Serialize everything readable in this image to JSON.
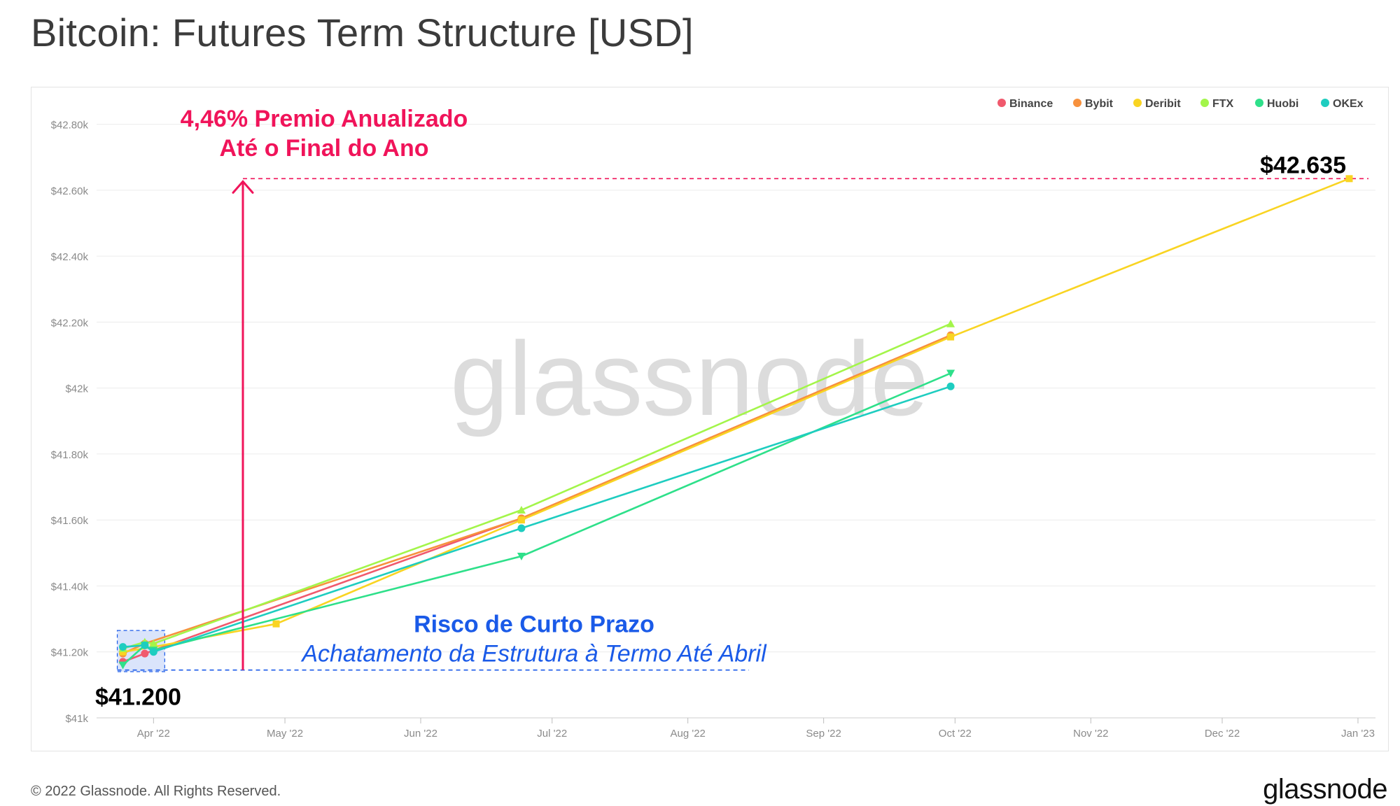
{
  "title": "Bitcoin: Futures Term Structure [USD]",
  "footer": "© 2022 Glassnode. All Rights Reserved.",
  "brand": "glassnode",
  "watermark": "glassnode",
  "chart_data": {
    "type": "line",
    "title": "Bitcoin: Futures Term Structure [USD]",
    "ylim": [
      41000,
      42850
    ],
    "xlim": [
      "2022-03-19",
      "2023-01-05"
    ],
    "y_ticks": [
      {
        "value": 41000,
        "label": "$41k"
      },
      {
        "value": 41200,
        "label": "$41.20k"
      },
      {
        "value": 41400,
        "label": "$41.40k"
      },
      {
        "value": 41600,
        "label": "$41.60k"
      },
      {
        "value": 41800,
        "label": "$41.80k"
      },
      {
        "value": 42000,
        "label": "$42k"
      },
      {
        "value": 42200,
        "label": "$42.20k"
      },
      {
        "value": 42400,
        "label": "$42.40k"
      },
      {
        "value": 42600,
        "label": "$42.60k"
      },
      {
        "value": 42800,
        "label": "$42.80k"
      }
    ],
    "x_ticks": [
      {
        "date": "2022-04-01",
        "label": "Apr '22"
      },
      {
        "date": "2022-05-01",
        "label": "May '22"
      },
      {
        "date": "2022-06-01",
        "label": "Jun '22"
      },
      {
        "date": "2022-07-01",
        "label": "Jul '22"
      },
      {
        "date": "2022-08-01",
        "label": "Aug '22"
      },
      {
        "date": "2022-09-01",
        "label": "Sep '22"
      },
      {
        "date": "2022-10-01",
        "label": "Oct '22"
      },
      {
        "date": "2022-11-01",
        "label": "Nov '22"
      },
      {
        "date": "2022-12-01",
        "label": "Dec '22"
      },
      {
        "date": "2023-01-01",
        "label": "Jan '23"
      }
    ],
    "grid": true,
    "legend_position": "top-right",
    "series": [
      {
        "name": "Binance",
        "color": "#f0596d",
        "marker": "circle",
        "points": [
          {
            "x": "2022-03-25",
            "y": 41170
          },
          {
            "x": "2022-03-30",
            "y": 41195
          },
          {
            "x": "2022-06-24",
            "y": 41605
          },
          {
            "x": "2022-09-30",
            "y": 42160
          }
        ]
      },
      {
        "name": "Bybit",
        "color": "#f7913d",
        "marker": "circle",
        "points": [
          {
            "x": "2022-03-25",
            "y": 41195
          },
          {
            "x": "2022-03-30",
            "y": 41225
          },
          {
            "x": "2022-06-24",
            "y": 41605
          },
          {
            "x": "2022-09-30",
            "y": 42160
          }
        ]
      },
      {
        "name": "Deribit",
        "color": "#f9d422",
        "marker": "square",
        "points": [
          {
            "x": "2022-03-25",
            "y": 41200
          },
          {
            "x": "2022-04-01",
            "y": 41215
          },
          {
            "x": "2022-04-29",
            "y": 41285
          },
          {
            "x": "2022-06-24",
            "y": 41600
          },
          {
            "x": "2022-09-30",
            "y": 42155
          },
          {
            "x": "2022-12-30",
            "y": 42635
          }
        ]
      },
      {
        "name": "FTX",
        "color": "#a3f54a",
        "marker": "triangle-up",
        "points": [
          {
            "x": "2022-03-25",
            "y": 41210
          },
          {
            "x": "2022-03-30",
            "y": 41230
          },
          {
            "x": "2022-04-01",
            "y": 41225
          },
          {
            "x": "2022-06-24",
            "y": 41630
          },
          {
            "x": "2022-09-30",
            "y": 42195
          }
        ]
      },
      {
        "name": "Huobi",
        "color": "#2ee08a",
        "marker": "triangle-down",
        "points": [
          {
            "x": "2022-03-25",
            "y": 41160
          },
          {
            "x": "2022-03-30",
            "y": 41220
          },
          {
            "x": "2022-04-01",
            "y": 41205
          },
          {
            "x": "2022-06-24",
            "y": 41490
          },
          {
            "x": "2022-09-30",
            "y": 42045
          }
        ]
      },
      {
        "name": "OKEx",
        "color": "#1ecdc0",
        "marker": "circle",
        "points": [
          {
            "x": "2022-03-25",
            "y": 41215
          },
          {
            "x": "2022-03-30",
            "y": 41220
          },
          {
            "x": "2022-04-01",
            "y": 41200
          },
          {
            "x": "2022-06-24",
            "y": 41575
          },
          {
            "x": "2022-09-30",
            "y": 42005
          }
        ]
      }
    ],
    "annotations": {
      "premium_line1": "4,46% Premio Anualizado",
      "premium_line2": "Até o Final do Ano",
      "end_price": "$42.635",
      "start_price": "$41.200",
      "risk_title": "Risco de Curto Prazo",
      "risk_subtitle": "Achatamento da Estrutura à Termo Até Abril",
      "premium_color": "#f0145a",
      "risk_color": "#1a5ae8"
    }
  }
}
